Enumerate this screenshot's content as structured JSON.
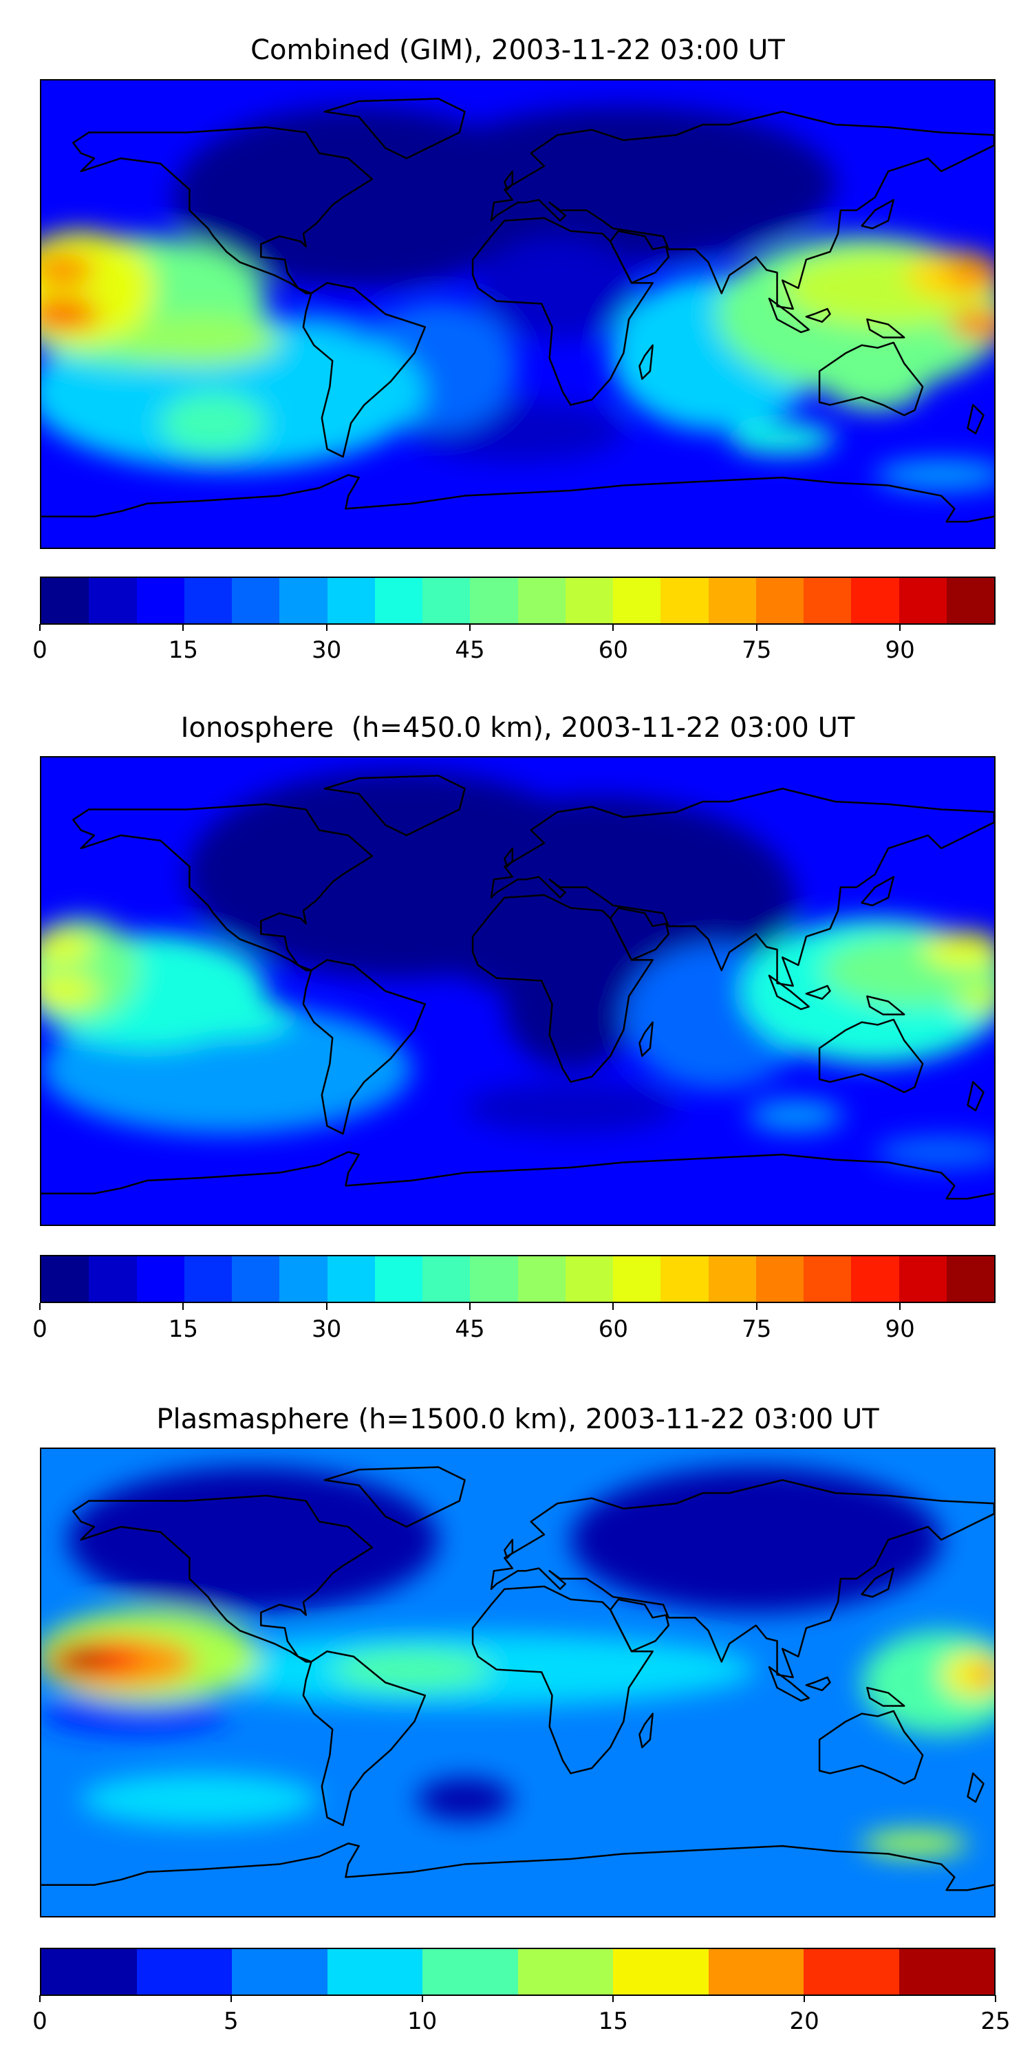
{
  "chart_data": [
    {
      "type": "heatmap",
      "title": "Combined (GIM), 2003-11-22 03:00 UT",
      "colorbar": {
        "min": 0,
        "max": 100,
        "step": 5,
        "ticks": [
          0,
          15,
          30,
          45,
          60,
          75,
          90
        ],
        "tick_labels": [
          "0",
          "15",
          "30",
          "45",
          "60",
          "75",
          "90"
        ],
        "colors": [
          "#00008f",
          "#0000c8",
          "#0000ff",
          "#0030ff",
          "#0066ff",
          "#009cff",
          "#00d0ff",
          "#16ffe1",
          "#40ffb7",
          "#6cff8b",
          "#96ff61",
          "#c0ff37",
          "#e6ff10",
          "#ffd900",
          "#ffae00",
          "#ff7f00",
          "#ff4f00",
          "#ff1e00",
          "#d40000",
          "#990000"
        ]
      },
      "background_value": 12,
      "field": [
        {
          "lon": -60,
          "lat": 45,
          "rlon": 70,
          "rlat": 35,
          "value": 3
        },
        {
          "lon": 40,
          "lat": 50,
          "rlon": 80,
          "rlat": 30,
          "value": 4
        },
        {
          "lon": 15,
          "lat": 10,
          "rlon": 30,
          "rlat": 20,
          "value": 8
        },
        {
          "lon": 0,
          "lat": -45,
          "rlon": 40,
          "rlat": 12,
          "value": 7
        },
        {
          "lon": -30,
          "lat": -20,
          "rlon": 30,
          "rlat": 25,
          "value": 22
        },
        {
          "lon": -110,
          "lat": -30,
          "rlon": 75,
          "rlat": 30,
          "value": 32
        },
        {
          "lon": -115,
          "lat": -42,
          "rlon": 20,
          "rlat": 12,
          "value": 40
        },
        {
          "lon": -145,
          "lat": 5,
          "rlon": 50,
          "rlat": 25,
          "value": 45
        },
        {
          "lon": -120,
          "lat": -10,
          "rlon": 30,
          "rlat": 10,
          "value": 52
        },
        {
          "lon": -165,
          "lat": 10,
          "rlon": 28,
          "rlat": 22,
          "value": 62
        },
        {
          "lon": -172,
          "lat": 17,
          "rlon": 12,
          "rlat": 6,
          "value": 77
        },
        {
          "lon": -172,
          "lat": 0,
          "rlon": 14,
          "rlat": 6,
          "value": 80
        },
        {
          "lon": -65,
          "lat": 0,
          "rlon": 15,
          "rlat": 6,
          "value": 14
        },
        {
          "lon": 75,
          "lat": -15,
          "rlon": 40,
          "rlat": 30,
          "value": 30
        },
        {
          "lon": 130,
          "lat": 0,
          "rlon": 55,
          "rlat": 30,
          "value": 45
        },
        {
          "lon": 140,
          "lat": 10,
          "rlon": 40,
          "rlat": 15,
          "value": 55
        },
        {
          "lon": 165,
          "lat": 15,
          "rlon": 18,
          "rlat": 9,
          "value": 68
        },
        {
          "lon": 172,
          "lat": 15,
          "rlon": 10,
          "rlat": 5,
          "value": 78
        },
        {
          "lon": 175,
          "lat": -4,
          "rlon": 12,
          "rlat": 6,
          "value": 75
        },
        {
          "lon": 135,
          "lat": -25,
          "rlon": 20,
          "rlat": 12,
          "value": 45
        },
        {
          "lon": 100,
          "lat": -48,
          "rlon": 20,
          "rlat": 6,
          "value": 35
        },
        {
          "lon": 160,
          "lat": -62,
          "rlon": 25,
          "rlat": 6,
          "value": 28
        }
      ]
    },
    {
      "type": "heatmap",
      "title": "Ionosphere  (h=450.0 km), 2003-11-22 03:00 UT",
      "colorbar": {
        "min": 0,
        "max": 100,
        "step": 5,
        "ticks": [
          0,
          15,
          30,
          45,
          60,
          75,
          90
        ],
        "tick_labels": [
          "0",
          "15",
          "30",
          "45",
          "60",
          "75",
          "90"
        ],
        "colors": [
          "#00008f",
          "#0000c8",
          "#0000ff",
          "#0030ff",
          "#0066ff",
          "#009cff",
          "#00d0ff",
          "#16ffe1",
          "#40ffb7",
          "#6cff8b",
          "#96ff61",
          "#c0ff37",
          "#e6ff10",
          "#ffd900",
          "#ffae00",
          "#ff7f00",
          "#ff4f00",
          "#ff1e00",
          "#d40000",
          "#990000"
        ]
      },
      "background_value": 11,
      "field": [
        {
          "lon": -45,
          "lat": 45,
          "rlon": 80,
          "rlat": 40,
          "value": 2
        },
        {
          "lon": 30,
          "lat": 35,
          "rlon": 75,
          "rlat": 40,
          "value": 3
        },
        {
          "lon": 20,
          "lat": -5,
          "rlon": 25,
          "rlat": 25,
          "value": 4
        },
        {
          "lon": 20,
          "lat": -45,
          "rlon": 40,
          "rlat": 10,
          "value": 6
        },
        {
          "lon": -110,
          "lat": -30,
          "rlon": 70,
          "rlat": 25,
          "value": 25
        },
        {
          "lon": -140,
          "lat": 0,
          "rlon": 45,
          "rlat": 22,
          "value": 35
        },
        {
          "lon": -110,
          "lat": -10,
          "rlon": 25,
          "rlat": 8,
          "value": 38
        },
        {
          "lon": -165,
          "lat": 8,
          "rlon": 22,
          "rlat": 20,
          "value": 48
        },
        {
          "lon": -172,
          "lat": 17,
          "rlon": 12,
          "rlat": 6,
          "value": 60
        },
        {
          "lon": -172,
          "lat": 0,
          "rlon": 14,
          "rlat": 6,
          "value": 62
        },
        {
          "lon": 75,
          "lat": -10,
          "rlon": 35,
          "rlat": 28,
          "value": 22
        },
        {
          "lon": 135,
          "lat": 0,
          "rlon": 50,
          "rlat": 28,
          "value": 35
        },
        {
          "lon": 150,
          "lat": 8,
          "rlon": 35,
          "rlat": 14,
          "value": 48
        },
        {
          "lon": 168,
          "lat": 16,
          "rlon": 15,
          "rlat": 7,
          "value": 62
        },
        {
          "lon": 175,
          "lat": -3,
          "rlon": 10,
          "rlat": 6,
          "value": 58
        },
        {
          "lon": 105,
          "lat": -48,
          "rlon": 18,
          "rlat": 6,
          "value": 25
        },
        {
          "lon": 160,
          "lat": -62,
          "rlon": 25,
          "rlat": 6,
          "value": 22
        }
      ]
    },
    {
      "type": "heatmap",
      "title": "Plasmasphere (h=1500.0 km), 2003-11-22 03:00 UT",
      "colorbar": {
        "min": 0,
        "max": 25,
        "step": 2.5,
        "ticks": [
          0,
          5,
          10,
          15,
          20,
          25
        ],
        "tick_labels": [
          "0",
          "5",
          "10",
          "15",
          "20",
          "25"
        ],
        "colors": [
          "#0000aa",
          "#0020ff",
          "#0080ff",
          "#00dcfe",
          "#4cffaa",
          "#aaff4c",
          "#f8f500",
          "#ff9400",
          "#ff3000",
          "#aa0000"
        ]
      },
      "background_value": 6,
      "field": [
        {
          "lon": -100,
          "lat": 55,
          "rlon": 70,
          "rlat": 28,
          "value": 2
        },
        {
          "lon": 90,
          "lat": 55,
          "rlon": 70,
          "rlat": 28,
          "value": 2
        },
        {
          "lon": -20,
          "lat": 5,
          "rlon": 110,
          "rlat": 14,
          "value": 8
        },
        {
          "lon": -40,
          "lat": 5,
          "rlon": 30,
          "rlat": 8,
          "value": 11
        },
        {
          "lon": -20,
          "lat": -45,
          "rlon": 18,
          "rlat": 8,
          "value": 2
        },
        {
          "lon": -145,
          "lat": -12,
          "rlon": 35,
          "rlat": 8,
          "value": 3
        },
        {
          "lon": -140,
          "lat": 10,
          "rlon": 42,
          "rlat": 18,
          "value": 14
        },
        {
          "lon": -150,
          "lat": 8,
          "rlon": 28,
          "rlat": 10,
          "value": 18
        },
        {
          "lon": -160,
          "lat": 9,
          "rlon": 18,
          "rlat": 6,
          "value": 21
        },
        {
          "lon": -165,
          "lat": 9,
          "rlon": 10,
          "rlat": 4,
          "value": 24
        },
        {
          "lon": -120,
          "lat": -45,
          "rlon": 45,
          "rlat": 10,
          "value": 9
        },
        {
          "lon": 160,
          "lat": 0,
          "rlon": 30,
          "rlat": 20,
          "value": 10
        },
        {
          "lon": 172,
          "lat": 3,
          "rlon": 12,
          "rlat": 9,
          "value": 17
        },
        {
          "lon": 178,
          "lat": 3,
          "rlon": 6,
          "rlat": 5,
          "value": 19
        },
        {
          "lon": 150,
          "lat": -62,
          "rlon": 20,
          "rlat": 5,
          "value": 13
        }
      ]
    }
  ]
}
